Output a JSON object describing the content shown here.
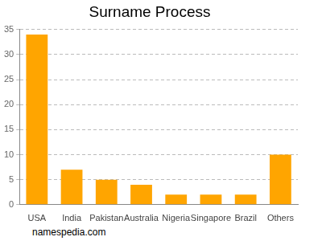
{
  "chart_data": {
    "type": "bar",
    "title": "Surname Process",
    "categories": [
      "USA",
      "India",
      "Pakistan",
      "Australia",
      "Nigeria",
      "Singapore",
      "Brazil",
      "Others"
    ],
    "values": [
      34,
      7,
      5,
      4,
      2,
      2,
      2,
      10
    ],
    "color": "#ffa500",
    "ylim": [
      0,
      35
    ],
    "yticks": [
      0,
      5,
      10,
      15,
      20,
      25,
      30,
      35
    ],
    "grid": true,
    "annotations": [
      "namespedia.com"
    ]
  }
}
